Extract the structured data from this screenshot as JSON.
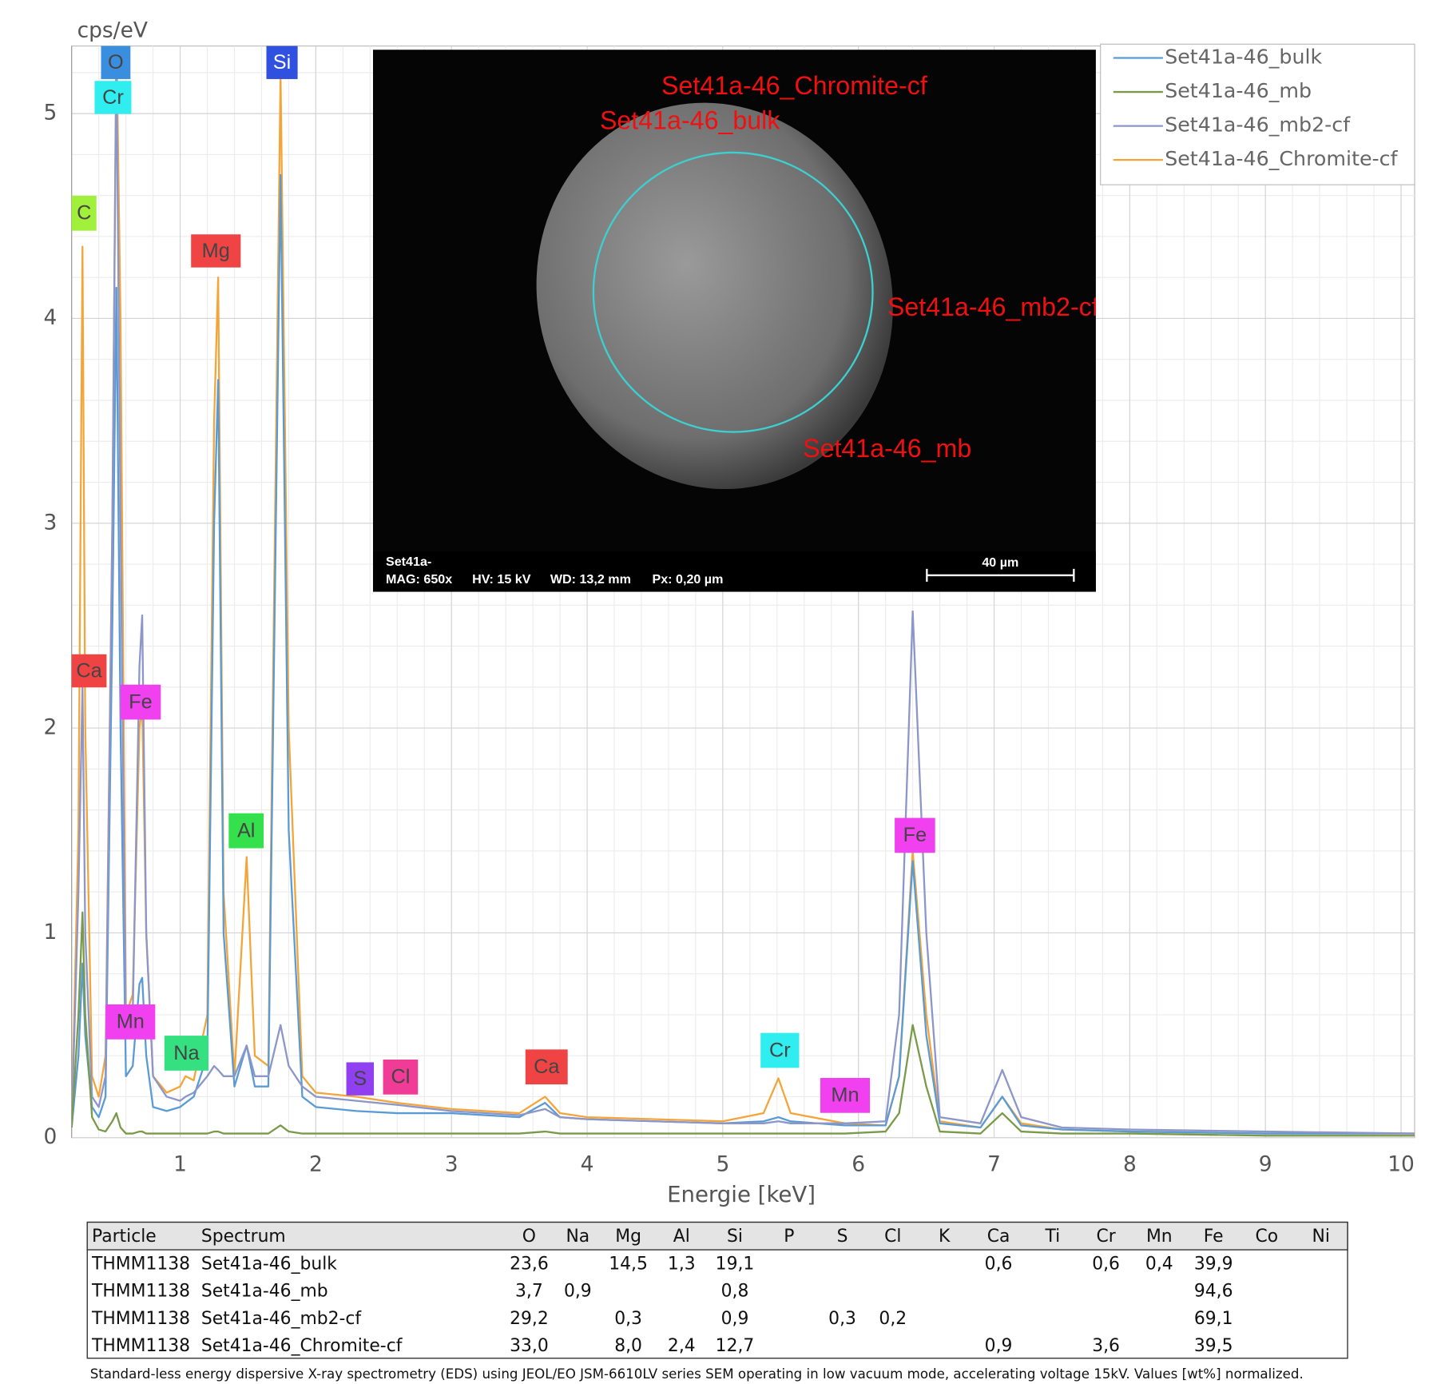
{
  "chart_data": {
    "type": "line",
    "y_label": "cps/eV",
    "x_label": "Energie [keV]",
    "xlim": [
      0.2,
      10.1
    ],
    "xticks": [
      1,
      2,
      3,
      4,
      5,
      6,
      7,
      8,
      9,
      10
    ],
    "ylim": [
      0,
      5.33
    ],
    "yticks": [
      0,
      1,
      2,
      3,
      4,
      5
    ],
    "grid": true,
    "legend": "upper right",
    "x": [
      0.2,
      0.25,
      0.28,
      0.3,
      0.35,
      0.4,
      0.45,
      0.5,
      0.53,
      0.56,
      0.6,
      0.65,
      0.7,
      0.72,
      0.75,
      0.8,
      0.9,
      1.0,
      1.04,
      1.1,
      1.2,
      1.25,
      1.28,
      1.32,
      1.4,
      1.49,
      1.55,
      1.65,
      1.74,
      1.8,
      1.9,
      2.0,
      2.3,
      2.6,
      3.0,
      3.5,
      3.69,
      3.8,
      4.0,
      4.5,
      5.0,
      5.3,
      5.41,
      5.5,
      5.9,
      6.2,
      6.3,
      6.4,
      6.5,
      6.6,
      6.9,
      7.06,
      7.2,
      7.5,
      8.0,
      9.0,
      10.1
    ],
    "series": [
      {
        "name": "Set41a-46_bulk",
        "color": "#5b9bd5",
        "values": [
          0.05,
          0.4,
          0.85,
          0.5,
          0.15,
          0.1,
          0.2,
          2.5,
          4.15,
          2.0,
          0.3,
          0.35,
          0.75,
          0.78,
          0.4,
          0.15,
          0.13,
          0.15,
          0.17,
          0.2,
          0.4,
          3.0,
          3.7,
          1.0,
          0.25,
          0.45,
          0.25,
          0.25,
          4.7,
          1.5,
          0.2,
          0.15,
          0.13,
          0.12,
          0.12,
          0.1,
          0.17,
          0.1,
          0.09,
          0.08,
          0.07,
          0.08,
          0.1,
          0.08,
          0.06,
          0.06,
          0.3,
          1.35,
          0.5,
          0.07,
          0.05,
          0.2,
          0.06,
          0.04,
          0.03,
          0.02,
          0.02
        ]
      },
      {
        "name": "Set41a-46_mb",
        "color": "#7a9a4a",
        "values": [
          0.05,
          0.6,
          1.1,
          0.6,
          0.1,
          0.04,
          0.03,
          0.08,
          0.12,
          0.05,
          0.02,
          0.02,
          0.03,
          0.03,
          0.02,
          0.02,
          0.02,
          0.02,
          0.02,
          0.02,
          0.02,
          0.03,
          0.03,
          0.02,
          0.02,
          0.02,
          0.02,
          0.02,
          0.06,
          0.03,
          0.02,
          0.02,
          0.02,
          0.02,
          0.02,
          0.02,
          0.03,
          0.02,
          0.02,
          0.02,
          0.02,
          0.02,
          0.02,
          0.02,
          0.02,
          0.03,
          0.12,
          0.55,
          0.25,
          0.03,
          0.02,
          0.12,
          0.03,
          0.02,
          0.02,
          0.01,
          0.01
        ]
      },
      {
        "name": "Set41a-46_mb2-cf",
        "color": "#8c96c8",
        "values": [
          0.05,
          1.2,
          2.2,
          1.0,
          0.2,
          0.15,
          0.3,
          3.0,
          5.3,
          3.0,
          0.5,
          0.6,
          2.3,
          2.55,
          1.0,
          0.3,
          0.2,
          0.18,
          0.2,
          0.22,
          0.3,
          0.35,
          0.33,
          0.3,
          0.3,
          0.45,
          0.3,
          0.3,
          0.55,
          0.35,
          0.25,
          0.2,
          0.18,
          0.16,
          0.13,
          0.11,
          0.14,
          0.1,
          0.09,
          0.08,
          0.07,
          0.07,
          0.08,
          0.07,
          0.07,
          0.08,
          0.6,
          2.57,
          1.0,
          0.1,
          0.07,
          0.33,
          0.1,
          0.05,
          0.04,
          0.03,
          0.02
        ]
      },
      {
        "name": "Set41a-46_Chromite-cf",
        "color": "#f4a53a",
        "values": [
          0.05,
          1.5,
          4.35,
          2.0,
          0.3,
          0.2,
          0.4,
          3.0,
          5.4,
          4.0,
          0.6,
          0.7,
          2.0,
          2.1,
          1.0,
          0.3,
          0.22,
          0.25,
          0.3,
          0.28,
          0.6,
          3.5,
          4.2,
          1.2,
          0.3,
          1.37,
          0.4,
          0.35,
          5.2,
          2.0,
          0.3,
          0.22,
          0.2,
          0.17,
          0.14,
          0.12,
          0.2,
          0.12,
          0.1,
          0.09,
          0.08,
          0.12,
          0.29,
          0.12,
          0.07,
          0.06,
          0.3,
          1.4,
          0.6,
          0.08,
          0.05,
          0.2,
          0.07,
          0.04,
          0.03,
          0.02,
          0.02
        ]
      }
    ],
    "annotations": [
      {
        "text": "O",
        "color": "#3a8ee0"
      },
      {
        "text": "Cr",
        "color": "#30eef0"
      },
      {
        "text": "Si",
        "color": "#3050e0",
        "text_color": "#ffffff"
      },
      {
        "text": "C",
        "color": "#a0f03c"
      },
      {
        "text": "Mg",
        "color": "#f04444"
      },
      {
        "text": "Ca",
        "color": "#f04444"
      },
      {
        "text": "Fe",
        "color": "#f040f0"
      },
      {
        "text": "Al",
        "color": "#34e04c"
      },
      {
        "text": "Mn",
        "color": "#f040f0"
      },
      {
        "text": "Na",
        "color": "#34e080"
      },
      {
        "text": "S",
        "color": "#9040f0"
      },
      {
        "text": "Cl",
        "color": "#f03c96"
      },
      {
        "text": "Ca",
        "color": "#f04444"
      },
      {
        "text": "Cr",
        "color": "#30eef0"
      },
      {
        "text": "Mn",
        "color": "#f040f0"
      },
      {
        "text": "Fe",
        "color": "#f040f0"
      }
    ]
  },
  "image": {
    "labels": [
      "Set41a-46_Chromite-cf",
      "Set41a-46_bulk",
      "Set41a-46_mb2-cf",
      "Set41a-46_mb"
    ],
    "sample": "Set41a-",
    "mag": "MAG: 650x",
    "hv": "HV: 15 kV",
    "wd": "WD: 13,2 mm",
    "px": "Px: 0,20 µm",
    "scale_bar": "40 µm"
  },
  "table": {
    "header": [
      "Particle",
      "Spectrum",
      "O",
      "Na",
      "Mg",
      "Al",
      "Si",
      "P",
      "S",
      "Cl",
      "K",
      "Ca",
      "Ti",
      "Cr",
      "Mn",
      "Fe",
      "Co",
      "Ni"
    ],
    "rows": [
      [
        "THMM1138",
        "Set41a-46_bulk",
        "23,6",
        null,
        "14,5",
        "1,3",
        "19,1",
        null,
        null,
        null,
        null,
        "0,6",
        null,
        "0,6",
        "0,4",
        "39,9",
        null,
        null
      ],
      [
        "THMM1138",
        "Set41a-46_mb",
        "3,7",
        "0,9",
        null,
        null,
        "0,8",
        null,
        null,
        null,
        null,
        null,
        null,
        null,
        null,
        "94,6",
        null,
        null
      ],
      [
        "THMM1138",
        "Set41a-46_mb2-cf",
        "29,2",
        null,
        "0,3",
        null,
        "0,9",
        null,
        "0,3",
        "0,2",
        null,
        null,
        null,
        null,
        null,
        "69,1",
        null,
        null
      ],
      [
        "THMM1138",
        "Set41a-46_Chromite-cf",
        "33,0",
        null,
        "8,0",
        "2,4",
        "12,7",
        null,
        null,
        null,
        null,
        "0,9",
        null,
        "3,6",
        null,
        "39,5",
        null,
        null
      ]
    ]
  },
  "caption": "Standard-less energy dispersive X-ray spectrometry (EDS) using JEOL/EO JSM-6610LV series SEM operating in low vacuum mode, accelerating voltage 15kV. Values [wt%] normalized."
}
